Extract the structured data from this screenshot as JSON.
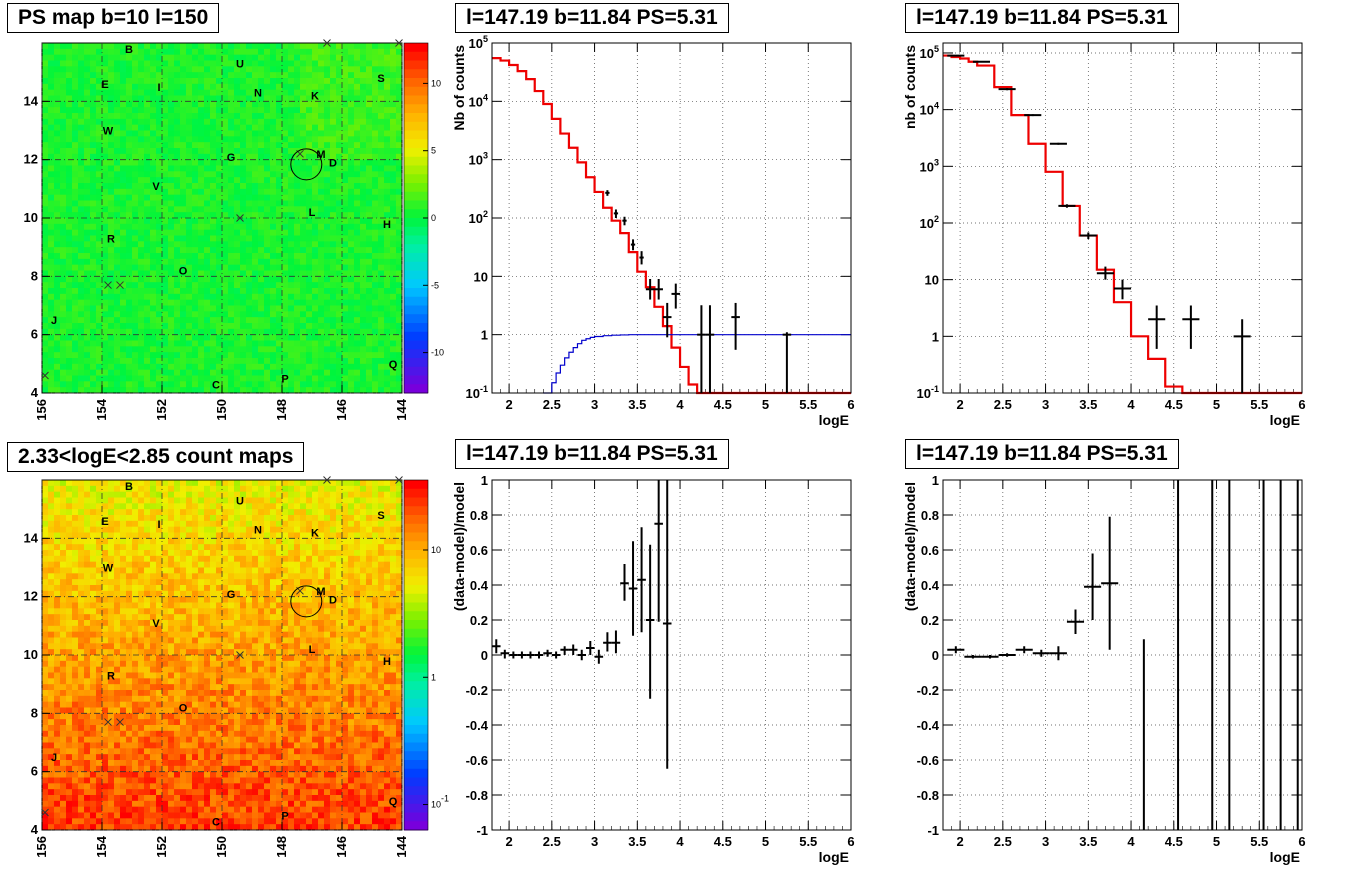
{
  "titles": {
    "ps_map": "PS map b=10 l=150",
    "count_map": "2.33<logE<2.85 count maps",
    "spec_a": "l=147.19 b=11.84 PS=5.31",
    "spec_b": "l=147.19 b=11.84 PS=5.31",
    "ratio_a": "l=147.19 b=11.84 PS=5.31",
    "ratio_b": "l=147.19 b=11.84 PS=5.31"
  },
  "chart_data": [
    {
      "id": "ps_map",
      "type": "heatmap",
      "title": "PS map b=10 l=150",
      "x_ticks": [
        "156",
        "154",
        "152",
        "150",
        "148",
        "146",
        "144"
      ],
      "y_ticks": [
        "4",
        "6",
        "8",
        "10",
        "12",
        "14"
      ],
      "xlim": [
        156,
        144
      ],
      "ylim": [
        4,
        16
      ],
      "colorbar_ticks": [
        "10",
        "5",
        "0",
        "-5",
        "-10"
      ],
      "colorbar_range": [
        -13,
        13
      ],
      "dominant_value": 0,
      "grid": true,
      "labels": [
        {
          "text": "B",
          "l": 153.1,
          "b": 15.8
        },
        {
          "text": "U",
          "l": 149.4,
          "b": 15.3
        },
        {
          "text": "E",
          "l": 153.9,
          "b": 14.6
        },
        {
          "text": "I",
          "l": 152.1,
          "b": 14.5
        },
        {
          "text": "N",
          "l": 148.8,
          "b": 14.3
        },
        {
          "text": "K",
          "l": 146.9,
          "b": 14.2
        },
        {
          "text": "S",
          "l": 144.7,
          "b": 14.8
        },
        {
          "text": "W",
          "l": 153.8,
          "b": 13.0
        },
        {
          "text": "G",
          "l": 149.7,
          "b": 12.1
        },
        {
          "text": "M",
          "l": 146.7,
          "b": 12.2
        },
        {
          "text": "D",
          "l": 146.3,
          "b": 11.9
        },
        {
          "text": "V",
          "l": 152.2,
          "b": 11.1
        },
        {
          "text": "L",
          "l": 147.0,
          "b": 10.2
        },
        {
          "text": "H",
          "l": 144.5,
          "b": 9.8
        },
        {
          "text": "R",
          "l": 153.7,
          "b": 9.3
        },
        {
          "text": "O",
          "l": 151.3,
          "b": 8.2
        },
        {
          "text": "J",
          "l": 155.6,
          "b": 6.5
        },
        {
          "text": "Q",
          "l": 144.3,
          "b": 5.0
        },
        {
          "text": "P",
          "l": 147.9,
          "b": 4.5
        },
        {
          "text": "C",
          "l": 150.2,
          "b": 4.3
        }
      ],
      "crosses": [
        {
          "l": 146.5,
          "b": 16.0
        },
        {
          "l": 144.1,
          "b": 16.0
        },
        {
          "l": 147.4,
          "b": 12.2
        },
        {
          "l": 149.4,
          "b": 10.0
        },
        {
          "l": 153.8,
          "b": 7.7
        },
        {
          "l": 153.4,
          "b": 7.7
        },
        {
          "l": 155.9,
          "b": 4.6
        }
      ],
      "circle": {
        "l": 147.19,
        "b": 11.84,
        "r": 0.5
      }
    },
    {
      "id": "count_map",
      "type": "heatmap",
      "title": "2.33<logE<2.85 count maps",
      "x_ticks": [
        "156",
        "154",
        "152",
        "150",
        "148",
        "146",
        "144"
      ],
      "y_ticks": [
        "4",
        "6",
        "8",
        "10",
        "12",
        "14"
      ],
      "xlim": [
        156,
        144
      ],
      "ylim": [
        4,
        16
      ],
      "colorbar_ticks": [
        "10",
        "1",
        "10-1"
      ],
      "colorbar_scale": "log",
      "grid": true
    },
    {
      "id": "spec_a",
      "type": "line",
      "title": "l=147.19 b=11.84 PS=5.31",
      "xlabel": "logE",
      "ylabel": "Nb of counts",
      "xlim": [
        1.8,
        6
      ],
      "ylim": [
        0.1,
        100000
      ],
      "yscale": "log",
      "x_ticks": [
        "2",
        "2.5",
        "3",
        "3.5",
        "4",
        "4.5",
        "5",
        "5.5",
        "6"
      ],
      "y_ticks": [
        "10-1",
        "1",
        "10",
        "102",
        "103",
        "104",
        "105"
      ],
      "grid": true,
      "series": [
        {
          "name": "",
          "style": "step",
          "color": "#ee0000",
          "edges": [
            1.8,
            1.9,
            2.0,
            2.1,
            2.2,
            2.3,
            2.4,
            2.5,
            2.6,
            2.7,
            2.8,
            2.9,
            3.0,
            3.1,
            3.2,
            3.3,
            3.4,
            3.5,
            3.6,
            3.7,
            3.8,
            3.9,
            4.0,
            4.1,
            4.2,
            4.3,
            4.4
          ],
          "values": [
            55000,
            50000,
            42000,
            33000,
            24000,
            15000,
            9000,
            5000,
            2800,
            1600,
            900,
            500,
            280,
            150,
            90,
            55,
            26,
            12,
            6.5,
            3,
            1.4,
            0.6,
            0.28,
            0.14,
            0.1,
            0.1
          ]
        },
        {
          "name": "",
          "style": "step",
          "color": "#0000cc",
          "edges": [
            2.4,
            2.5,
            2.55,
            2.6,
            2.65,
            2.7,
            2.75,
            2.8,
            2.85,
            2.9,
            2.95,
            3.0,
            3.1,
            3.2,
            3.3,
            3.4,
            3.5,
            6.0
          ],
          "values": [
            0.1,
            0.15,
            0.22,
            0.3,
            0.4,
            0.5,
            0.6,
            0.7,
            0.8,
            0.85,
            0.9,
            0.93,
            0.96,
            0.98,
            0.99,
            1.0,
            1.0
          ]
        },
        {
          "name": "",
          "style": "errorbar",
          "color": "#000000",
          "points": [
            {
              "x": 3.15,
              "y": 270,
              "xe": 0.025,
              "lo": 240,
              "hi": 300
            },
            {
              "x": 3.25,
              "y": 120,
              "xe": 0.025,
              "lo": 100,
              "hi": 140
            },
            {
              "x": 3.35,
              "y": 90,
              "xe": 0.025,
              "lo": 75,
              "hi": 105
            },
            {
              "x": 3.45,
              "y": 35,
              "xe": 0.025,
              "lo": 28,
              "hi": 43
            },
            {
              "x": 3.55,
              "y": 21,
              "xe": 0.025,
              "lo": 16,
              "hi": 27
            },
            {
              "x": 3.65,
              "y": 6,
              "xe": 0.05,
              "lo": 4,
              "hi": 9
            },
            {
              "x": 3.75,
              "y": 6,
              "xe": 0.05,
              "lo": 4,
              "hi": 9
            },
            {
              "x": 3.85,
              "y": 2,
              "xe": 0.05,
              "lo": 0.9,
              "hi": 3.5
            },
            {
              "x": 3.95,
              "y": 5,
              "xe": 0.05,
              "lo": 2.8,
              "hi": 7.5
            },
            {
              "x": 4.25,
              "y": 1,
              "xe": 0.05,
              "lo": 0.1,
              "hi": 3.2
            },
            {
              "x": 4.35,
              "y": 1,
              "xe": 0.05,
              "lo": 0.1,
              "hi": 3.2
            },
            {
              "x": 4.65,
              "y": 2,
              "xe": 0.05,
              "lo": 0.55,
              "hi": 3.5
            },
            {
              "x": 5.25,
              "y": 1,
              "xe": 0.05,
              "lo": 0.1,
              "hi": 1.1
            }
          ]
        }
      ]
    },
    {
      "id": "spec_b",
      "type": "line",
      "title": "l=147.19 b=11.84 PS=5.31",
      "xlabel": "logE",
      "ylabel": "nb of counts",
      "xlim": [
        1.8,
        6
      ],
      "ylim": [
        0.1,
        150000
      ],
      "yscale": "log",
      "x_ticks": [
        "2",
        "2.5",
        "3",
        "3.5",
        "4",
        "4.5",
        "5",
        "5.5",
        "6"
      ],
      "y_ticks": [
        "10-1",
        "1",
        "10",
        "102",
        "103",
        "104",
        "105"
      ],
      "grid": true,
      "series": [
        {
          "name": "",
          "style": "step",
          "color": "#ee0000",
          "edges": [
            1.8,
            1.9,
            2.0,
            2.1,
            2.2,
            2.4,
            2.6,
            2.8,
            3.0,
            3.2,
            3.4,
            3.6,
            3.8,
            4.0,
            4.2,
            4.4,
            4.6,
            6.0
          ],
          "values": [
            90000,
            85000,
            80000,
            70000,
            60000,
            25000,
            8000,
            2500,
            800,
            200,
            60,
            15,
            4,
            1,
            0.4,
            0.13,
            0.1
          ]
        },
        {
          "name": "",
          "style": "errorbar",
          "color": "#000000",
          "points": [
            {
              "x": 1.95,
              "y": 90000,
              "xe": 0.1,
              "lo": 88000,
              "hi": 92000
            },
            {
              "x": 2.25,
              "y": 70000,
              "xe": 0.1,
              "lo": 68000,
              "hi": 72000
            },
            {
              "x": 2.55,
              "y": 23000,
              "xe": 0.1,
              "lo": 22000,
              "hi": 24000
            },
            {
              "x": 2.85,
              "y": 8000,
              "xe": 0.1,
              "lo": 7700,
              "hi": 8300
            },
            {
              "x": 3.15,
              "y": 2500,
              "xe": 0.1,
              "lo": 2400,
              "hi": 2600
            },
            {
              "x": 3.25,
              "y": 200,
              "xe": 0.1,
              "lo": 186,
              "hi": 214
            },
            {
              "x": 3.5,
              "y": 60,
              "xe": 0.1,
              "lo": 52,
              "hi": 68
            },
            {
              "x": 3.7,
              "y": 13,
              "xe": 0.1,
              "lo": 10,
              "hi": 17
            },
            {
              "x": 3.9,
              "y": 7,
              "xe": 0.1,
              "lo": 4.5,
              "hi": 10
            },
            {
              "x": 4.3,
              "y": 2,
              "xe": 0.1,
              "lo": 0.6,
              "hi": 3.5
            },
            {
              "x": 4.7,
              "y": 2,
              "xe": 0.1,
              "lo": 0.6,
              "hi": 3.5
            },
            {
              "x": 5.3,
              "y": 1,
              "xe": 0.1,
              "lo": 0.1,
              "hi": 2
            }
          ]
        }
      ]
    },
    {
      "id": "ratio_a",
      "type": "scatter",
      "title": "l=147.19 b=11.84 PS=5.31",
      "xlabel": "logE",
      "ylabel": "(data-model)/model",
      "xlim": [
        1.8,
        6
      ],
      "ylim": [
        -1,
        1
      ],
      "x_ticks": [
        "2",
        "2.5",
        "3",
        "3.5",
        "4",
        "4.5",
        "5",
        "5.5",
        "6"
      ],
      "y_ticks": [
        "-1",
        "-0.8",
        "-0.6",
        "-0.4",
        "-0.2",
        "0",
        "0.2",
        "0.4",
        "0.6",
        "0.8",
        "1"
      ],
      "grid": true,
      "series": [
        {
          "name": "",
          "style": "errorbar",
          "color": "#000000",
          "points": [
            {
              "x": 1.85,
              "y": 0.05,
              "xe": 0.05,
              "lo": 0.01,
              "hi": 0.09
            },
            {
              "x": 1.95,
              "y": 0.01,
              "xe": 0.05,
              "lo": -0.02,
              "hi": 0.03
            },
            {
              "x": 2.05,
              "y": 0.0,
              "xe": 0.05,
              "lo": -0.02,
              "hi": 0.02
            },
            {
              "x": 2.15,
              "y": 0.0,
              "xe": 0.05,
              "lo": -0.02,
              "hi": 0.02
            },
            {
              "x": 2.25,
              "y": 0.0,
              "xe": 0.05,
              "lo": -0.02,
              "hi": 0.02
            },
            {
              "x": 2.35,
              "y": 0.0,
              "xe": 0.05,
              "lo": -0.02,
              "hi": 0.02
            },
            {
              "x": 2.45,
              "y": 0.01,
              "xe": 0.05,
              "lo": -0.01,
              "hi": 0.03
            },
            {
              "x": 2.55,
              "y": 0.0,
              "xe": 0.05,
              "lo": -0.02,
              "hi": 0.02
            },
            {
              "x": 2.65,
              "y": 0.03,
              "xe": 0.05,
              "lo": 0.0,
              "hi": 0.05
            },
            {
              "x": 2.75,
              "y": 0.03,
              "xe": 0.05,
              "lo": 0.0,
              "hi": 0.06
            },
            {
              "x": 2.85,
              "y": 0.0,
              "xe": 0.05,
              "lo": -0.03,
              "hi": 0.03
            },
            {
              "x": 2.95,
              "y": 0.04,
              "xe": 0.05,
              "lo": 0.0,
              "hi": 0.08
            },
            {
              "x": 3.05,
              "y": -0.01,
              "xe": 0.05,
              "lo": -0.05,
              "hi": 0.03
            },
            {
              "x": 3.15,
              "y": 0.07,
              "xe": 0.05,
              "lo": 0.02,
              "hi": 0.13
            },
            {
              "x": 3.25,
              "y": 0.07,
              "xe": 0.05,
              "lo": 0.01,
              "hi": 0.14
            },
            {
              "x": 3.35,
              "y": 0.41,
              "xe": 0.05,
              "lo": 0.31,
              "hi": 0.52
            },
            {
              "x": 3.45,
              "y": 0.38,
              "xe": 0.05,
              "lo": 0.11,
              "hi": 0.65
            },
            {
              "x": 3.55,
              "y": 0.43,
              "xe": 0.05,
              "lo": 0.13,
              "hi": 0.73
            },
            {
              "x": 3.65,
              "y": 0.2,
              "xe": 0.05,
              "lo": -0.25,
              "hi": 0.63
            },
            {
              "x": 3.75,
              "y": 0.75,
              "xe": 0.05,
              "lo": 0.19,
              "hi": 1.0
            },
            {
              "x": 3.85,
              "y": 0.18,
              "xe": 0.05,
              "lo": -0.65,
              "hi": 1.0
            }
          ]
        }
      ]
    },
    {
      "id": "ratio_b",
      "type": "scatter",
      "title": "l=147.19 b=11.84 PS=5.31",
      "xlabel": "logE",
      "ylabel": "(data-model)/model",
      "xlim": [
        1.8,
        6
      ],
      "ylim": [
        -1,
        1
      ],
      "x_ticks": [
        "2",
        "2.5",
        "3",
        "3.5",
        "4",
        "4.5",
        "5",
        "5.5",
        "6"
      ],
      "y_ticks": [
        "-1",
        "-0.8",
        "-0.6",
        "-0.4",
        "-0.2",
        "0",
        "0.2",
        "0.4",
        "0.6",
        "0.8",
        "1"
      ],
      "grid": true,
      "series": [
        {
          "name": "",
          "style": "errorbar",
          "color": "#000000",
          "points": [
            {
              "x": 1.95,
              "y": 0.03,
              "xe": 0.1,
              "lo": 0.01,
              "hi": 0.05
            },
            {
              "x": 2.15,
              "y": -0.01,
              "xe": 0.1,
              "lo": -0.02,
              "hi": 0.0
            },
            {
              "x": 2.35,
              "y": -0.01,
              "xe": 0.1,
              "lo": -0.02,
              "hi": 0.0
            },
            {
              "x": 2.55,
              "y": 0.0,
              "xe": 0.1,
              "lo": -0.01,
              "hi": 0.01
            },
            {
              "x": 2.75,
              "y": 0.03,
              "xe": 0.1,
              "lo": 0.01,
              "hi": 0.05
            },
            {
              "x": 2.95,
              "y": 0.01,
              "xe": 0.1,
              "lo": -0.01,
              "hi": 0.03
            },
            {
              "x": 3.15,
              "y": 0.01,
              "xe": 0.1,
              "lo": -0.03,
              "hi": 0.05
            },
            {
              "x": 3.35,
              "y": 0.19,
              "xe": 0.1,
              "lo": 0.12,
              "hi": 0.26
            },
            {
              "x": 3.55,
              "y": 0.39,
              "xe": 0.1,
              "lo": 0.2,
              "hi": 0.58
            },
            {
              "x": 3.75,
              "y": 0.41,
              "xe": 0.1,
              "lo": 0.03,
              "hi": 0.79
            },
            {
              "x": 4.15,
              "y": -1.0,
              "xe": 0.0,
              "lo": -1.0,
              "hi": 0.09
            },
            {
              "x": 4.55,
              "y": -1.0,
              "xe": 0.0,
              "lo": -1.0,
              "hi": 1.0
            },
            {
              "x": 4.95,
              "y": -1.0,
              "xe": 0.0,
              "lo": -1.0,
              "hi": 1.0
            },
            {
              "x": 5.15,
              "y": -1.0,
              "xe": 0.0,
              "lo": -1.0,
              "hi": 1.0
            },
            {
              "x": 5.55,
              "y": -1.0,
              "xe": 0.0,
              "lo": -1.0,
              "hi": 1.0
            },
            {
              "x": 5.75,
              "y": -1.0,
              "xe": 0.0,
              "lo": -1.0,
              "hi": 1.0
            },
            {
              "x": 5.95,
              "y": -1.0,
              "xe": 0.0,
              "lo": -1.0,
              "hi": 1.0
            }
          ]
        }
      ]
    }
  ]
}
